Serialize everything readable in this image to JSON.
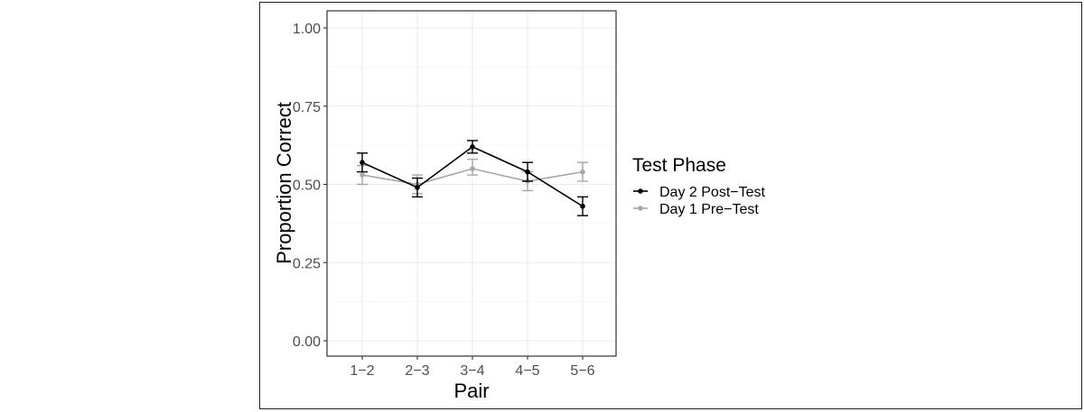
{
  "chart_data": {
    "type": "line",
    "title": "",
    "xlabel": "Pair",
    "ylabel": "Proportion Correct",
    "categories": [
      "1−2",
      "2−3",
      "3−4",
      "4−5",
      "5−6"
    ],
    "ylim": [
      0,
      1
    ],
    "yticks": [
      0,
      0.25,
      0.5,
      0.75,
      1
    ],
    "ytick_labels": [
      "0.00",
      "0.25",
      "0.50",
      "0.75",
      "1.00"
    ],
    "grid": true,
    "legend": {
      "title": "Test Phase",
      "placement": "right"
    },
    "series": [
      {
        "name": "Day 2 Post−Test",
        "color": "#000000",
        "values": [
          0.57,
          0.49,
          0.62,
          0.54,
          0.43
        ],
        "err_low": [
          0.54,
          0.46,
          0.6,
          0.51,
          0.4
        ],
        "err_high": [
          0.6,
          0.52,
          0.64,
          0.57,
          0.46
        ]
      },
      {
        "name": "Day 1 Pre−Test",
        "color": "#a6a6a6",
        "values": [
          0.53,
          0.5,
          0.55,
          0.51,
          0.54
        ],
        "err_low": [
          0.5,
          0.47,
          0.53,
          0.48,
          0.51
        ],
        "err_high": [
          0.56,
          0.53,
          0.58,
          0.54,
          0.57
        ]
      }
    ]
  }
}
